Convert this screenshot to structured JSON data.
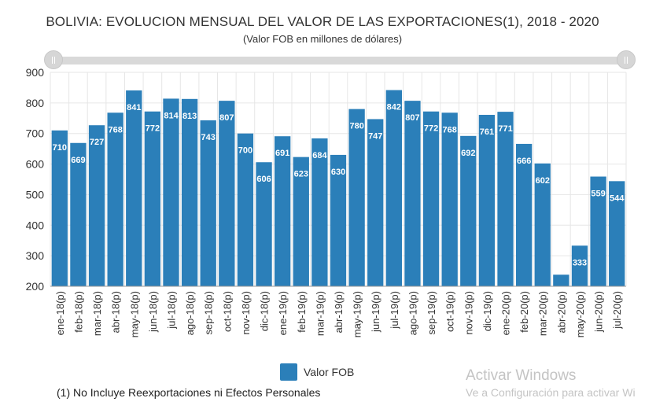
{
  "chart_data": {
    "type": "bar",
    "title": "BOLIVIA: EVOLUCION MENSUAL DEL VALOR DE LAS EXPORTACIONES(1), 2018 - 2020",
    "subtitle": "(Valor FOB en millones de dólares)",
    "xlabel": "",
    "ylabel": "",
    "ylim": [
      200,
      900
    ],
    "yticks": [
      200,
      300,
      400,
      500,
      600,
      700,
      800,
      900
    ],
    "grid": true,
    "legend_position": "bottom",
    "categories": [
      "ene-18(p)",
      "feb-18(p)",
      "mar-18(p)",
      "abr-18(p)",
      "may-18(p)",
      "jun-18(p)",
      "jul-18(p)",
      "ago-18(p)",
      "sep-18(p)",
      "oct-18(p)",
      "nov-18(p)",
      "dic-18(p)",
      "ene-19(p)",
      "feb-19(p)",
      "mar-19(p)",
      "abr-19(p)",
      "may-19(p)",
      "jun-19(p)",
      "jul-19(p)",
      "ago-19(p)",
      "sep-19(p)",
      "oct-19(p)",
      "nov-19(p)",
      "dic-19(p)",
      "ene-20(p)",
      "feb-20(p)",
      "mar-20(p)",
      "abr-20(p)",
      "may-20(p)",
      "jun-20(p)",
      "jul-20(p)"
    ],
    "series": [
      {
        "name": "Valor FOB",
        "color": "#2b7fb9",
        "values": [
          710,
          669,
          727,
          768,
          841,
          772,
          814,
          813,
          743,
          807,
          700,
          606,
          691,
          623,
          684,
          630,
          780,
          747,
          842,
          807,
          772,
          768,
          692,
          761,
          771,
          666,
          602,
          238,
          333,
          559,
          544
        ]
      }
    ]
  },
  "legend": {
    "label": "Valor FOB"
  },
  "footnote": "(1) No Incluye Reexportaciones ni Efectos Personales",
  "watermark": {
    "line1": "Activar Windows",
    "line2": "Ve a Configuración para activar Wi"
  },
  "colors": {
    "bar": "#2b7fb9",
    "grid": "#e6e6e6",
    "axis": "#333333",
    "scroller": "#d9d9d9"
  }
}
